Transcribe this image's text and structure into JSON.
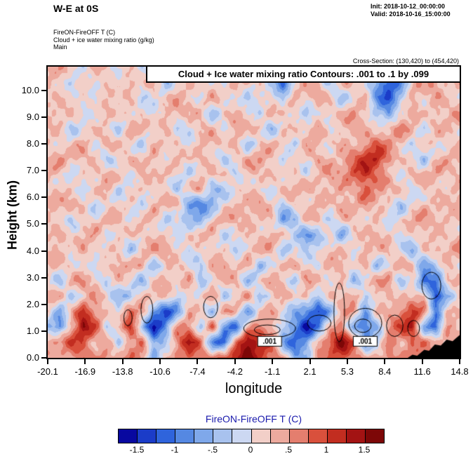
{
  "header": {
    "title": "W-E at 0S",
    "init": "Init: 2018-10-12_00:00:00",
    "valid": "Valid: 2018-10-16_15:00:00",
    "field_line1": "FireON-FireOFF T  (C)",
    "field_line2": "Cloud + ice water mixing ratio  (g/kg)",
    "field_line3": "Main",
    "cross_section": "Cross-Section: (130,420) to (454,420)"
  },
  "chart_data": {
    "type": "heatmap",
    "title": "Cloud + Ice water mixing ratio Contours: .001 to .1 by .099",
    "xlabel": "longitude",
    "ylabel": "Height (km)",
    "x_ticks": [
      "-20.1",
      "-16.9",
      "-13.8",
      "-10.6",
      "-7.4",
      "-4.2",
      "-1.1",
      "2.1",
      "5.3",
      "8.4",
      "11.6",
      "14.8"
    ],
    "y_ticks": [
      "0.0",
      "1.0",
      "2.0",
      "3.0",
      "4.0",
      "5.0",
      "6.0",
      "7.0",
      "8.0",
      "9.0",
      "10.0"
    ],
    "x_range": [
      -20.1,
      14.8
    ],
    "y_range": [
      0,
      10.89
    ],
    "colorbar": {
      "title": "FireON-FireOFF T  (C)",
      "title_color": "#1a1aad",
      "labels": [
        "-1.5",
        "-1",
        "-.5",
        "0",
        ".5",
        "1",
        "1.5"
      ],
      "vmin": -1.75,
      "vmax": 1.75,
      "colors": [
        "#0808a0",
        "#1b3cc8",
        "#2f64dc",
        "#5588e2",
        "#7fa8ea",
        "#a8c2ee",
        "#ccd8f2",
        "#f2cfc8",
        "#edaa9e",
        "#e47e6e",
        "#d9503c",
        "#c22d20",
        "#a31313",
        "#7d0707"
      ]
    },
    "field": {
      "comment": "FireON-FireOFF temperature difference (C), coarse grid, rows top(10.89km) to bottom(0km), cols lon -20.1 to 14.8",
      "values": [
        [
          0.2,
          0.3,
          0.2,
          -0.2,
          0.2,
          0.3,
          0.2,
          0.2,
          -0.3,
          0.2,
          0.3,
          0.2,
          0.2,
          0.4,
          0.2,
          -0.2,
          -0.4,
          0.2,
          0.3,
          0.2,
          -0.3,
          -0.6,
          0.2,
          0.3,
          0.2,
          0.2,
          -0.3,
          0.2,
          0.3,
          -0.5,
          -0.8,
          0.3,
          0.2,
          0.2,
          0.3,
          0.2
        ],
        [
          0.3,
          0.2,
          -0.3,
          0.2,
          0.3,
          0.2,
          -0.2,
          0.3,
          0.2,
          0.2,
          -0.4,
          0.2,
          0.3,
          0.2,
          0.2,
          -0.3,
          0.2,
          0.4,
          0.2,
          -0.5,
          -0.9,
          0.2,
          0.3,
          0.2,
          -0.4,
          0.2,
          0.3,
          0.2,
          -0.6,
          -1.2,
          -0.8,
          0.2,
          0.3,
          0.4,
          0.2,
          0.3
        ],
        [
          0.2,
          0.3,
          0.2,
          0.2,
          -0.4,
          0.2,
          0.3,
          0.2,
          -0.3,
          0.3,
          0.2,
          0.4,
          0.2,
          -0.2,
          0.3,
          0.2,
          0.2,
          -0.5,
          0.2,
          0.3,
          -0.6,
          0.2,
          0.2,
          0.4,
          0.2,
          -0.3,
          0.2,
          0.3,
          -0.9,
          -1.4,
          -0.6,
          0.3,
          0.2,
          0.5,
          0.3,
          0.2
        ],
        [
          0.3,
          0.2,
          0.2,
          -0.3,
          0.2,
          0.4,
          0.2,
          0.3,
          0.2,
          -0.4,
          0.2,
          0.3,
          0.2,
          0.4,
          -0.3,
          0.2,
          0.3,
          0.2,
          -0.4,
          0.2,
          0.3,
          0.2,
          -0.5,
          0.2,
          0.3,
          0.2,
          0.4,
          0.2,
          -0.5,
          -0.8,
          0.3,
          0.5,
          0.2,
          0.3,
          0.2,
          0.4
        ],
        [
          0.2,
          0.2,
          -0.3,
          0.2,
          0.3,
          0.2,
          -0.4,
          0.2,
          0.3,
          0.2,
          0.4,
          -0.3,
          0.2,
          0.3,
          0.2,
          -0.2,
          0.4,
          0.2,
          0.3,
          -0.4,
          0.2,
          0.3,
          0.2,
          0.4,
          -0.3,
          0.2,
          0.5,
          0.3,
          0.2,
          0.4,
          0.6,
          0.3,
          -0.3,
          0.2,
          0.3,
          0.2
        ],
        [
          0.3,
          0.2,
          0.2,
          0.4,
          -0.2,
          0.3,
          0.2,
          0.2,
          -0.3,
          0.4,
          0.2,
          0.3,
          -0.4,
          0.2,
          0.3,
          0.2,
          0.4,
          -0.3,
          0.2,
          0.3,
          0.2,
          -0.4,
          0.3,
          0.2,
          0.2,
          0.5,
          0.2,
          0.6,
          0.8,
          0.4,
          0.2,
          -0.3,
          0.3,
          0.2,
          0.2,
          0.3
        ],
        [
          0.2,
          0.4,
          0.2,
          0.2,
          0.3,
          -0.3,
          0.2,
          0.4,
          0.2,
          0.3,
          -0.2,
          0.2,
          0.3,
          0.4,
          0.2,
          -0.3,
          0.2,
          0.3,
          0.4,
          0.2,
          -0.3,
          0.2,
          0.3,
          0.5,
          0.2,
          0.3,
          0.7,
          1.0,
          1.2,
          0.6,
          0.3,
          0.2,
          -0.4,
          0.2,
          0.3,
          0.2
        ],
        [
          0.3,
          0.2,
          -0.2,
          0.3,
          0.2,
          0.4,
          0.2,
          -0.3,
          0.3,
          0.2,
          0.4,
          0.2,
          -0.3,
          0.2,
          0.3,
          0.2,
          -0.4,
          0.2,
          0.3,
          0.4,
          0.2,
          0.3,
          -0.3,
          0.2,
          0.5,
          0.3,
          0.9,
          1.3,
          0.8,
          0.4,
          -0.2,
          0.3,
          0.2,
          0.4,
          0.2,
          0.3
        ],
        [
          0.2,
          0.3,
          0.2,
          -0.3,
          0.2,
          0.3,
          -0.4,
          0.2,
          0.3,
          0.2,
          0.2,
          -0.5,
          0.2,
          0.4,
          -0.6,
          -0.4,
          0.2,
          0.3,
          0.2,
          -0.3,
          0.3,
          0.2,
          0.4,
          0.2,
          0.3,
          0.6,
          0.4,
          0.8,
          0.5,
          0.2,
          0.3,
          -0.3,
          0.2,
          0.3,
          0.2,
          0.4
        ],
        [
          0.3,
          0.2,
          0.4,
          0.2,
          -0.3,
          0.2,
          0.3,
          0.2,
          -0.4,
          0.3,
          0.2,
          0.3,
          -0.7,
          -0.9,
          -0.5,
          0.2,
          0.3,
          0.2,
          0.4,
          0.2,
          -0.4,
          0.3,
          0.2,
          0.5,
          0.2,
          0.3,
          0.2,
          0.4,
          0.2,
          0.3,
          -0.5,
          0.2,
          0.3,
          0.2,
          0.2,
          0.3
        ],
        [
          0.2,
          0.2,
          -0.3,
          0.3,
          0.2,
          0.4,
          0.2,
          -0.2,
          0.3,
          0.2,
          -0.3,
          0.2,
          -0.5,
          -0.6,
          0.2,
          0.3,
          0.2,
          0.4,
          0.2,
          0.3,
          -0.6,
          -0.4,
          0.3,
          0.2,
          -0.4,
          0.2,
          0.3,
          0.2,
          0.4,
          -0.3,
          0.2,
          0.3,
          0.4,
          0.2,
          0.3,
          0.2
        ],
        [
          0.3,
          0.4,
          0.2,
          0.2,
          0.3,
          -0.3,
          0.2,
          0.3,
          0.2,
          0.4,
          0.2,
          -0.4,
          0.2,
          0.3,
          0.2,
          -0.3,
          0.3,
          0.2,
          0.2,
          0.4,
          0.2,
          -0.5,
          -0.8,
          -0.5,
          0.2,
          -0.6,
          0.3,
          0.2,
          0.3,
          0.2,
          -0.4,
          0.2,
          0.3,
          0.4,
          0.2,
          0.3
        ],
        [
          0.2,
          0.3,
          -0.2,
          0.4,
          0.2,
          0.3,
          0.2,
          -0.4,
          0.2,
          0.3,
          0.4,
          0.2,
          -0.3,
          0.2,
          0.4,
          0.2,
          -0.5,
          0.2,
          0.3,
          0.2,
          -0.4,
          0.2,
          -0.4,
          0.2,
          0.3,
          0.2,
          -0.3,
          0.4,
          0.2,
          0.3,
          0.2,
          -0.6,
          0.2,
          0.3,
          0.2,
          0.4
        ],
        [
          0.3,
          0.2,
          0.3,
          0.2,
          -0.3,
          0.2,
          0.4,
          0.2,
          0.3,
          -0.4,
          0.2,
          0.3,
          0.2,
          -0.3,
          0.2,
          0.4,
          0.2,
          0.3,
          -0.5,
          0.2,
          0.3,
          0.4,
          0.2,
          -0.3,
          0.2,
          0.4,
          0.2,
          0.3,
          -0.4,
          0.2,
          0.3,
          0.2,
          -0.8,
          -0.5,
          0.3,
          0.2
        ],
        [
          0.2,
          -0.3,
          0.3,
          0.4,
          0.2,
          -0.4,
          0.2,
          0.3,
          -0.5,
          0.2,
          0.4,
          0.2,
          0.3,
          -0.6,
          0.2,
          0.3,
          0.4,
          -0.4,
          0.2,
          0.3,
          0.2,
          -0.5,
          0.3,
          0.5,
          0.2,
          0.3,
          -0.6,
          0.2,
          0.4,
          0.3,
          -0.4,
          0.2,
          -1.2,
          -0.8,
          0.4,
          0.2
        ],
        [
          0.3,
          0.2,
          -0.4,
          0.2,
          0.5,
          0.2,
          -0.3,
          -0.6,
          0.2,
          0.4,
          0.2,
          -0.4,
          0.3,
          0.2,
          0.5,
          -0.3,
          0.2,
          0.4,
          -0.6,
          0.2,
          0.3,
          0.2,
          0.6,
          -0.4,
          0.2,
          0.3,
          0.4,
          -0.5,
          0.2,
          0.5,
          0.2,
          0.3,
          0.6,
          -1.5,
          -0.9,
          0.3
        ],
        [
          0.2,
          -0.5,
          0.4,
          1.2,
          0.6,
          0.2,
          -0.4,
          0.9,
          0.5,
          -0.8,
          -1.3,
          -0.6,
          0.3,
          0.2,
          -0.5,
          0.4,
          0.2,
          -0.7,
          0.3,
          0.5,
          0.2,
          -0.6,
          -1.1,
          -1.4,
          -0.7,
          0.3,
          0.6,
          -0.5,
          0.4,
          0.2,
          0.6,
          1.0,
          0.4,
          -0.9,
          0.5,
          0.2
        ],
        [
          -0.4,
          -0.9,
          0.3,
          1.5,
          0.8,
          -0.3,
          0.5,
          1.1,
          -0.4,
          -1.5,
          -0.9,
          0.4,
          0.6,
          -0.5,
          0.8,
          -0.6,
          -1.0,
          0.3,
          0.7,
          0.4,
          -0.5,
          -0.9,
          -1.6,
          -1.0,
          0.4,
          0.8,
          -0.7,
          -1.2,
          -0.6,
          0.5,
          0.9,
          1.3,
          -0.5,
          -1.1,
          0.6,
          0.3
        ],
        [
          0.3,
          0.6,
          1.0,
          0.8,
          0.4,
          0.6,
          -0.5,
          0.5,
          0.8,
          -0.9,
          -0.4,
          0.7,
          1.4,
          0.9,
          -0.8,
          -1.3,
          0.6,
          1.6,
          1.0,
          0.8,
          -0.6,
          -1.0,
          -0.7,
          0.5,
          0.9,
          1.5,
          0.8,
          -0.8,
          -0.4,
          0.7,
          0.5,
          0.8,
          0.6,
          0.4,
          0.3,
          0.2
        ],
        [
          0.4,
          0.3,
          0.6,
          0.9,
          0.5,
          0.4,
          0.3,
          0.6,
          0.4,
          -0.5,
          0.3,
          0.5,
          0.9,
          0.6,
          0.4,
          0.8,
          1.2,
          1.8,
          1.2,
          0.9,
          0.5,
          -0.7,
          -0.5,
          0.4,
          0.6,
          1.0,
          0.7,
          0.4,
          0.5,
          0.6,
          0.4,
          0.5,
          0.3,
          0.2,
          0.2,
          0.2
        ]
      ]
    },
    "cloud_contours": [
      {
        "x": -13.3,
        "y": 1.5,
        "rx": 0.35,
        "ry": 0.3
      },
      {
        "x": -11.7,
        "y": 1.8,
        "rx": 0.5,
        "ry": 0.5
      },
      {
        "x": -6.3,
        "y": 1.9,
        "rx": 0.6,
        "ry": 0.4
      },
      {
        "x": -1.3,
        "y": 1.1,
        "rx": 2.2,
        "ry": 0.35
      },
      {
        "x": -1.5,
        "y": 1.05,
        "rx": 1.1,
        "ry": 0.18
      },
      {
        "x": 2.9,
        "y": 1.3,
        "rx": 1.0,
        "ry": 0.3
      },
      {
        "x": 4.6,
        "y": 1.7,
        "rx": 0.45,
        "ry": 1.1
      },
      {
        "x": 6.8,
        "y": 1.3,
        "rx": 1.4,
        "ry": 0.55
      },
      {
        "x": 6.6,
        "y": 1.2,
        "rx": 0.7,
        "ry": 0.25
      },
      {
        "x": 9.3,
        "y": 1.2,
        "rx": 0.7,
        "ry": 0.4
      },
      {
        "x": 10.9,
        "y": 1.1,
        "rx": 0.5,
        "ry": 0.3
      },
      {
        "x": 12.4,
        "y": 2.7,
        "rx": 0.8,
        "ry": 0.5
      }
    ],
    "contour_labels": [
      {
        "x": -1.3,
        "y": 0.62,
        "text": ".001"
      },
      {
        "x": 6.8,
        "y": 0.62,
        "text": ".001"
      }
    ],
    "terrain": {
      "color": "#000000",
      "points": [
        [
          10.4,
          0.0
        ],
        [
          10.8,
          0.12
        ],
        [
          11.2,
          0.08
        ],
        [
          11.8,
          0.3
        ],
        [
          12.2,
          0.26
        ],
        [
          12.7,
          0.5
        ],
        [
          13.2,
          0.46
        ],
        [
          13.7,
          0.68
        ],
        [
          14.2,
          0.62
        ],
        [
          14.8,
          0.85
        ]
      ]
    }
  }
}
